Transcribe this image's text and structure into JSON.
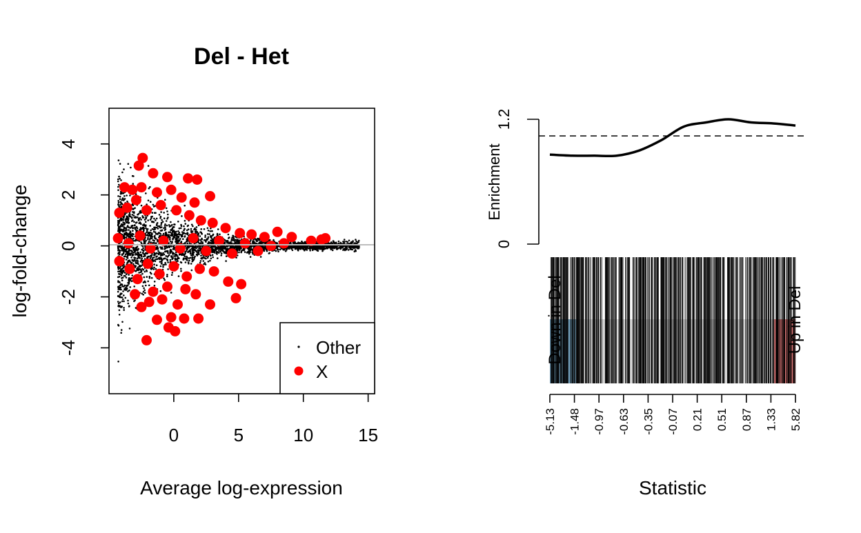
{
  "chart_data": [
    {
      "type": "scatter",
      "title": "Del - Het",
      "xlabel": "Average log-expression",
      "ylabel": "log-fold-change",
      "xlim": [
        -5,
        15.5
      ],
      "ylim": [
        -5.8,
        5.4
      ],
      "xticks": [
        0,
        5,
        10,
        15
      ],
      "yticks": [
        -4,
        -2,
        0,
        2,
        4
      ],
      "reference_line_y": 0,
      "reference_line_color": "#bdbdbd",
      "grid": false,
      "legend": {
        "placement": "bottom-right",
        "entries": [
          {
            "label": "Other",
            "color": "#000000",
            "marker": "small-dot"
          },
          {
            "label": "X",
            "color": "#ff0000",
            "marker": "large-dot"
          }
        ]
      },
      "series": [
        {
          "name": "X",
          "color": "#ff0000",
          "points": [
            [
              -2.4,
              3.45
            ],
            [
              -2.7,
              3.15
            ],
            [
              -1.6,
              2.85
            ],
            [
              -0.5,
              2.7
            ],
            [
              1.1,
              2.65
            ],
            [
              1.8,
              2.6
            ],
            [
              2.8,
              1.95
            ],
            [
              -3.8,
              2.3
            ],
            [
              -3.2,
              2.2
            ],
            [
              -2.5,
              2.3
            ],
            [
              -1.3,
              2.1
            ],
            [
              -0.2,
              2.2
            ],
            [
              0.6,
              1.9
            ],
            [
              1.6,
              1.7
            ],
            [
              -4.2,
              1.3
            ],
            [
              -3.6,
              1.5
            ],
            [
              -2.9,
              1.8
            ],
            [
              -2.1,
              1.4
            ],
            [
              -1.0,
              1.6
            ],
            [
              0.2,
              1.4
            ],
            [
              1.2,
              1.2
            ],
            [
              2.1,
              1.0
            ],
            [
              3.0,
              0.9
            ],
            [
              4.0,
              0.7
            ],
            [
              5.1,
              0.5
            ],
            [
              6.0,
              0.45
            ],
            [
              7.0,
              0.35
            ],
            [
              8.0,
              0.55
            ],
            [
              9.1,
              0.35
            ],
            [
              10.6,
              0.2
            ],
            [
              11.4,
              0.25
            ],
            [
              11.7,
              0.3
            ],
            [
              -4.3,
              0.3
            ],
            [
              -3.5,
              0.1
            ],
            [
              -2.6,
              0.4
            ],
            [
              -1.8,
              -0.1
            ],
            [
              -0.8,
              0.2
            ],
            [
              0.5,
              -0.1
            ],
            [
              1.5,
              0.3
            ],
            [
              2.5,
              -0.2
            ],
            [
              3.5,
              0.2
            ],
            [
              4.5,
              -0.3
            ],
            [
              5.5,
              0.1
            ],
            [
              6.5,
              -0.2
            ],
            [
              7.5,
              0.0
            ],
            [
              8.5,
              0.1
            ],
            [
              -4.2,
              -0.6
            ],
            [
              -3.4,
              -0.9
            ],
            [
              -2.8,
              -1.3
            ],
            [
              -2.0,
              -0.7
            ],
            [
              -1.1,
              -1.1
            ],
            [
              0.0,
              -0.8
            ],
            [
              1.0,
              -1.2
            ],
            [
              2.0,
              -0.9
            ],
            [
              3.1,
              -1.0
            ],
            [
              4.2,
              -1.4
            ],
            [
              5.2,
              -1.5
            ],
            [
              -3.0,
              -1.9
            ],
            [
              -2.5,
              -2.4
            ],
            [
              -1.9,
              -2.2
            ],
            [
              -0.9,
              -2.1
            ],
            [
              0.3,
              -2.3
            ],
            [
              1.7,
              -1.9
            ],
            [
              2.8,
              -2.3
            ],
            [
              4.8,
              -2.05
            ],
            [
              -1.3,
              -2.9
            ],
            [
              -0.2,
              -2.8
            ],
            [
              0.8,
              -2.85
            ],
            [
              1.9,
              -2.85
            ],
            [
              -0.4,
              -3.2
            ],
            [
              0.1,
              -3.35
            ],
            [
              -2.1,
              -3.7
            ],
            [
              -1.6,
              -1.8
            ],
            [
              -0.5,
              -1.6
            ],
            [
              0.9,
              -1.7
            ]
          ]
        }
      ]
    },
    {
      "type": "barcode",
      "xlabel": "Statistic",
      "ylabel": "Enrichment",
      "enrichment_ylim": [
        0,
        1.2
      ],
      "enrichment_yticks": [
        0,
        1.2
      ],
      "reference_line_y": 1.04,
      "quantile_tick_labels": [
        "-5.13",
        "-1.48",
        "-0.97",
        "-0.63",
        "-0.35",
        "-0.07",
        "0.21",
        "0.51",
        "0.87",
        "1.33",
        "5.82"
      ],
      "enrichment_curve": [
        0.86,
        0.85,
        0.85,
        0.85,
        0.9,
        1.0,
        1.13,
        1.17,
        1.2,
        1.17,
        1.16,
        1.14
      ],
      "region_labels": {
        "left": "Down in Del",
        "right": "Up in Del"
      },
      "down_color": "#4c8cb3",
      "up_color": "#e05050"
    }
  ]
}
